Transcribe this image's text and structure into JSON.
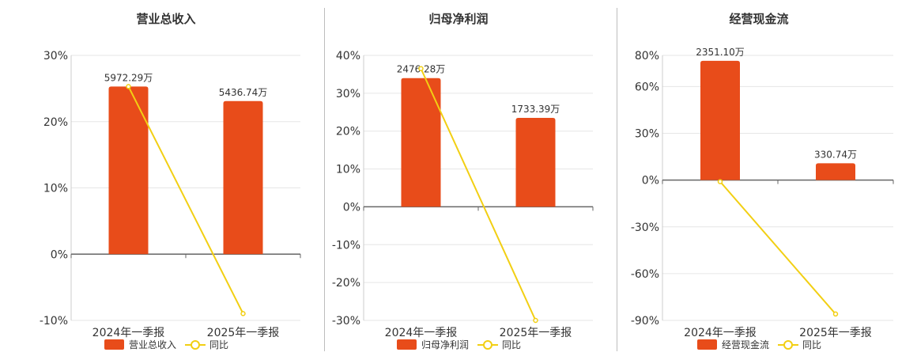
{
  "colors": {
    "bar": "#E84C1A",
    "line": "#F2CF13",
    "text": "#333333",
    "grid": "#e6e6e6",
    "axis": "#666666"
  },
  "legend": {
    "line_label": "同比"
  },
  "chart_data": [
    {
      "type": "bar",
      "title": "营业总收入",
      "categories": [
        "2024年一季报",
        "2025年一季报"
      ],
      "series": [
        {
          "name": "营业总收入",
          "type": "bar",
          "values": [
            25.3,
            23.1
          ],
          "labels": [
            "5972.29万",
            "5436.74万"
          ]
        },
        {
          "name": "同比",
          "type": "line",
          "values": [
            25.3,
            -8.97
          ]
        }
      ],
      "ylim": [
        -10,
        30
      ],
      "yticks": [
        -10,
        0,
        10,
        20,
        30
      ],
      "ytick_labels": [
        "-10%",
        "0%",
        "10%",
        "20%",
        "30%"
      ],
      "grid": true,
      "legend": "bottom"
    },
    {
      "type": "bar",
      "title": "归母净利润",
      "categories": [
        "2024年一季报",
        "2025年一季报"
      ],
      "series": [
        {
          "name": "归母净利润",
          "type": "bar",
          "values": [
            34.0,
            23.5
          ],
          "labels": [
            "2476.28万",
            "1733.39万"
          ]
        },
        {
          "name": "同比",
          "type": "line",
          "values": [
            36.5,
            -30.0
          ]
        }
      ],
      "ylim": [
        -30,
        40
      ],
      "yticks": [
        -30,
        -20,
        -10,
        0,
        10,
        20,
        30,
        40
      ],
      "ytick_labels": [
        "-30%",
        "-20%",
        "-10%",
        "0%",
        "10%",
        "20%",
        "30%",
        "40%"
      ],
      "grid": true,
      "legend": "bottom"
    },
    {
      "type": "bar",
      "title": "经营现金流",
      "categories": [
        "2024年一季报",
        "2025年一季报"
      ],
      "series": [
        {
          "name": "经营现金流",
          "type": "bar",
          "values": [
            76.5,
            10.8
          ],
          "labels": [
            "2351.10万",
            "330.74万"
          ]
        },
        {
          "name": "同比",
          "type": "line",
          "values": [
            -1.0,
            -85.9
          ]
        }
      ],
      "ylim": [
        -90,
        80
      ],
      "yticks": [
        -90,
        -60,
        -30,
        0,
        30,
        60,
        80
      ],
      "ytick_labels": [
        "-90%",
        "-60%",
        "-30%",
        "0%",
        "30%",
        "60%",
        "80%"
      ],
      "grid": true,
      "legend": "bottom"
    }
  ]
}
